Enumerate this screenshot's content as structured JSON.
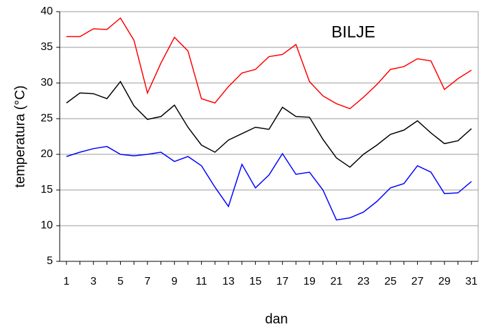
{
  "chart_data": {
    "type": "line",
    "title": "BILJE",
    "x_label": "dan",
    "y_label": "temperatura (°C)",
    "x": [
      1,
      2,
      3,
      4,
      5,
      6,
      7,
      8,
      9,
      10,
      11,
      12,
      13,
      14,
      15,
      16,
      17,
      18,
      19,
      20,
      21,
      22,
      23,
      24,
      25,
      26,
      27,
      28,
      29,
      30,
      31
    ],
    "series": [
      {
        "color": "#ff0000",
        "values": [
          36.5,
          36.5,
          37.6,
          37.5,
          39.1,
          36.0,
          28.6,
          32.8,
          36.4,
          34.5,
          27.8,
          27.2,
          29.5,
          31.4,
          31.9,
          33.7,
          34.0,
          35.4,
          30.2,
          28.2,
          27.1,
          26.4,
          28.0,
          29.8,
          31.9,
          32.3,
          33.4,
          33.1,
          29.1,
          30.6,
          31.8
        ]
      },
      {
        "color": "#000000",
        "values": [
          27.2,
          28.6,
          28.5,
          27.8,
          30.2,
          26.8,
          24.9,
          25.3,
          26.9,
          23.8,
          21.3,
          20.3,
          22.0,
          22.9,
          23.8,
          23.5,
          26.6,
          25.3,
          25.2,
          22.1,
          19.5,
          18.2,
          20.0,
          21.3,
          22.8,
          23.4,
          24.7,
          23.0,
          21.5,
          21.9,
          23.6
        ]
      },
      {
        "color": "#0000ff",
        "values": [
          19.7,
          20.3,
          20.8,
          21.1,
          20.0,
          19.8,
          20.0,
          20.3,
          19.0,
          19.7,
          18.4,
          15.4,
          12.7,
          18.6,
          15.3,
          17.1,
          20.1,
          17.2,
          17.5,
          15.0,
          10.8,
          11.1,
          11.9,
          13.4,
          15.3,
          15.9,
          18.4,
          17.5,
          14.5,
          14.6,
          16.2
        ]
      }
    ],
    "xlim": [
      0.5,
      31.5
    ],
    "xticks": [
      1,
      3,
      5,
      7,
      9,
      11,
      13,
      15,
      17,
      19,
      21,
      23,
      25,
      27,
      29,
      31
    ],
    "ylim": [
      5,
      40
    ],
    "yticks": [
      5,
      10,
      15,
      20,
      25,
      30,
      35,
      40
    ],
    "grid": true
  }
}
